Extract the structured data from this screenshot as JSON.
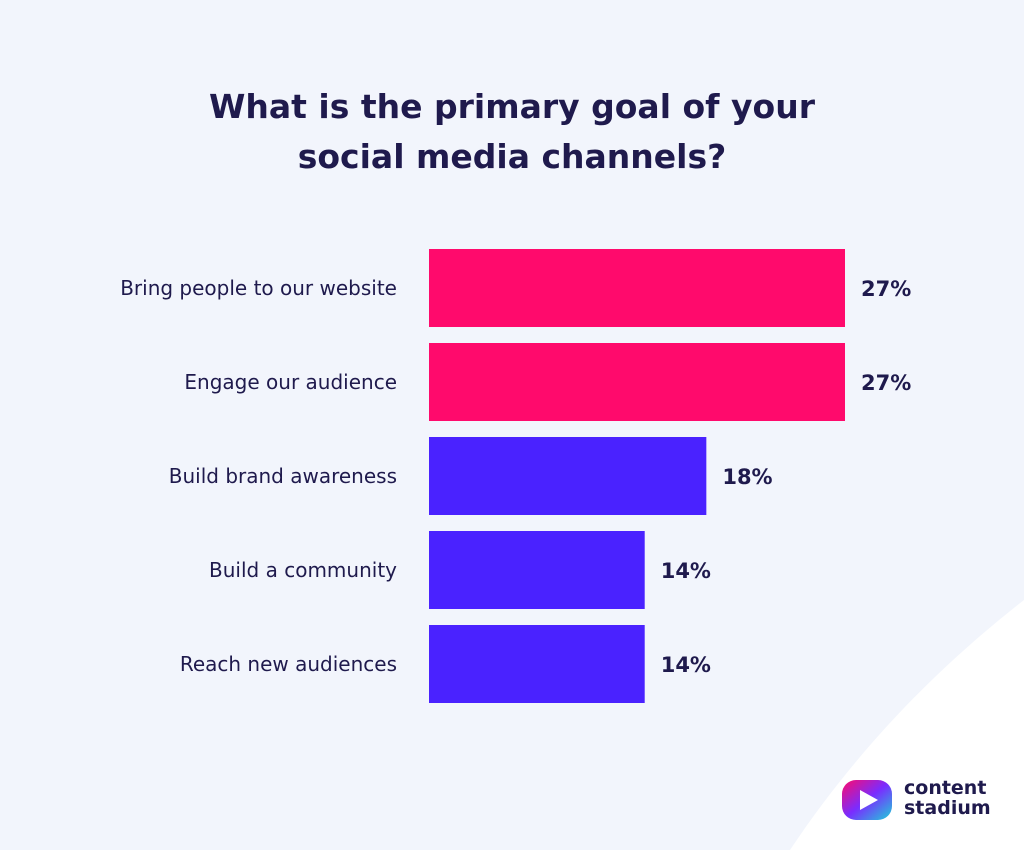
{
  "colors": {
    "background": "#f2f5fc",
    "title": "#1f1a4d",
    "highlight_bar": "#ff0a6c",
    "regular_bar": "#4a22ff",
    "label": "#1f1a4d"
  },
  "title_lines": [
    "What is the primary goal of your",
    "social media channels?"
  ],
  "chart_data": {
    "type": "bar",
    "orientation": "horizontal",
    "title": "What is the primary goal of your social media channels?",
    "categories": [
      "Bring people to our website",
      "Engage our audience",
      "Build brand awareness",
      "Build a community",
      "Reach new audiences"
    ],
    "values": [
      27,
      27,
      18,
      14,
      14
    ],
    "value_labels": [
      "27%",
      "27%",
      "18%",
      "14%",
      "14%"
    ],
    "highlighted": [
      true,
      true,
      false,
      false,
      false
    ],
    "grid": false,
    "legend": "none"
  },
  "brand": {
    "line1": "content",
    "line2": "stadium",
    "icon": "play-logo-icon"
  }
}
